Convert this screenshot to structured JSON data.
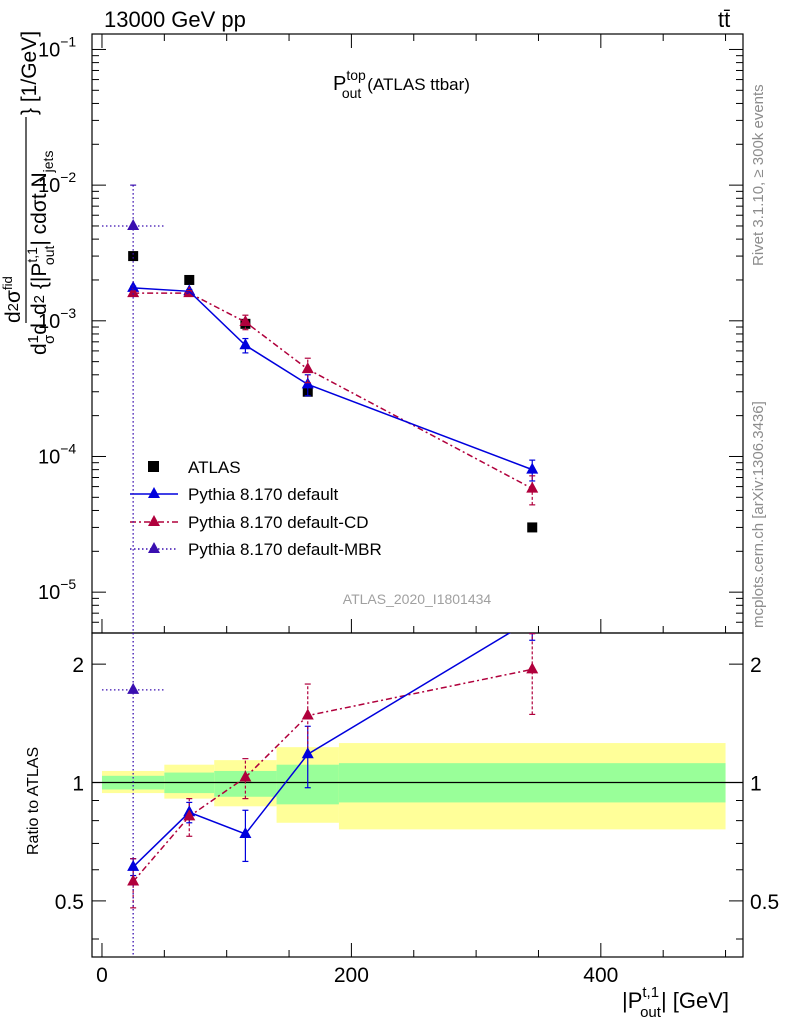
{
  "header": {
    "left": "13000 GeV pp",
    "right": "tt̄"
  },
  "side_info": {
    "rivet": "Rivet 3.1.10, ≥ 300k events",
    "source": "mcplots.cern.ch [arXiv:1306.3436]"
  },
  "colors": {
    "atlas": "#000000",
    "default": "#0000dd",
    "cd": "#b0003c",
    "mbr": "#3a0fb0",
    "band_inner": "#99ff99",
    "band_outer": "#ffff99"
  },
  "chart_data": {
    "type": "line",
    "title": "P_out^top (ATLAS ttbar)",
    "analysis_label": "ATLAS_2020_I1801434",
    "xlabel": "|P_out^t,1| [GeV]",
    "ylabel_top": "d/dσ 1/σ d/d... d²σ^fid / d²{|P_out^t,1| cdσt N_jets} [1/GeV]",
    "ylabel_bottom": "Ratio to ATLAS",
    "xlim": [
      -8,
      514
    ],
    "ylim_top": [
      5e-06,
      0.13
    ],
    "ylim_bottom": [
      0.36,
      2.4
    ],
    "y_scale_top": "log",
    "x_ticks": [
      "0",
      "200",
      "400"
    ],
    "y_ticks_top": [
      "10^-1",
      "10^-2",
      "10^-3",
      "10^-4",
      "10^-5"
    ],
    "y_ticks_bottom": [
      "0.5",
      "1",
      "2"
    ],
    "legend": {
      "position": "bottom-left",
      "entries": [
        "ATLAS",
        "Pythia 8.170 default",
        "Pythia 8.170 default-CD",
        "Pythia 8.170 default-MBR"
      ]
    },
    "bins": [
      [
        0,
        50
      ],
      [
        50,
        90
      ],
      [
        90,
        140
      ],
      [
        140,
        190
      ],
      [
        190,
        500
      ]
    ],
    "band_inner": [
      [
        0.96,
        1.04
      ],
      [
        0.94,
        1.06
      ],
      [
        0.92,
        1.07
      ],
      [
        0.88,
        1.11
      ],
      [
        0.89,
        1.12
      ]
    ],
    "band_outer": [
      [
        0.94,
        1.07
      ],
      [
        0.91,
        1.11
      ],
      [
        0.87,
        1.14
      ],
      [
        0.79,
        1.23
      ],
      [
        0.76,
        1.26
      ]
    ],
    "series": [
      {
        "name": "ATLAS",
        "x": [
          25,
          70,
          115,
          165,
          345
        ],
        "y": [
          0.003,
          0.002,
          0.00095,
          0.0003,
          3e-05
        ]
      },
      {
        "name": "Pythia 8.170 default",
        "x": [
          25,
          70,
          115,
          165,
          345
        ],
        "y": [
          0.00175,
          0.00165,
          0.00066,
          0.00034,
          8e-05
        ],
        "yerr": [
          5e-05,
          5e-05,
          8e-05,
          6e-05,
          1.4e-05
        ],
        "ratio": [
          0.61,
          0.84,
          0.74,
          1.18,
          2.6
        ],
        "ratio_err": [
          0.03,
          0.05,
          0.11,
          0.21,
          0.3
        ]
      },
      {
        "name": "Pythia 8.170 default-CD",
        "x": [
          25,
          70,
          115,
          165,
          345
        ],
        "y": [
          0.0016,
          0.0016,
          0.00098,
          0.00044,
          5.8e-05
        ],
        "yerr": [
          5e-05,
          7e-05,
          0.00012,
          9e-05,
          1.4e-05
        ],
        "ratio": [
          0.56,
          0.82,
          1.03,
          1.48,
          1.94
        ],
        "ratio_err": [
          0.08,
          0.09,
          0.12,
          0.3,
          0.45
        ]
      },
      {
        "name": "Pythia 8.170 default-MBR",
        "x": [
          25
        ],
        "xerr": [
          25
        ],
        "y": [
          0.005
        ],
        "ylow_top": [
          5e-06
        ],
        "yhigh_top": [
          0.01
        ],
        "ratio": [
          1.72
        ],
        "ratio_err_low": [
          0.36
        ],
        "ratio_err_high": [
          2.4
        ]
      }
    ]
  }
}
